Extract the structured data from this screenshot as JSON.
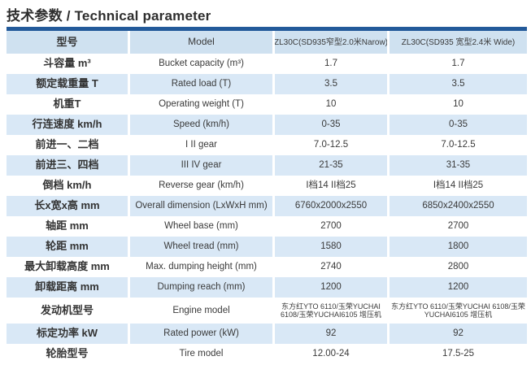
{
  "title": {
    "text": "技术参数 / Technical parameter"
  },
  "colors": {
    "navy": "#235a9a",
    "headerBg": "#cfe1f0",
    "stripeBg": "#d9e8f6",
    "title": "#2e2e2e",
    "text": "#3a3a3a"
  },
  "table": {
    "header": {
      "zh": "型号",
      "en": "Model",
      "narrow": "ZL30C(SD935窄型2.0米Narow)",
      "wide": "ZL30C(SD935 宽型2.4米 Wide)"
    },
    "rows": [
      {
        "zh": "斗容量 m³",
        "en": "Bucket capacity (m³)",
        "v1": "1.7",
        "v2": "1.7"
      },
      {
        "zh": "额定载重量 T",
        "en": "Rated load (T)",
        "v1": "3.5",
        "v2": "3.5"
      },
      {
        "zh": "机重T",
        "en": "Operating weight (T)",
        "v1": "10",
        "v2": "10"
      },
      {
        "zh": "行连速度 km/h",
        "en": "Speed (km/h)",
        "v1": "0-35",
        "v2": "0-35"
      },
      {
        "zh": "前进一、二档",
        "en": "I  II gear",
        "v1": "7.0-12.5",
        "v2": "7.0-12.5"
      },
      {
        "zh": "前进三、四档",
        "en": "III IV gear",
        "v1": "21-35",
        "v2": "31-35"
      },
      {
        "zh": "倒档 km/h",
        "en": "Reverse gear (km/h)",
        "v1": "I档14 II档25",
        "v2": "I档14 II档25"
      },
      {
        "zh": "长x宽x高 mm",
        "en": "Overall dimension (LxWxH mm)",
        "v1": "6760x2000x2550",
        "v2": "6850x2400x2550"
      },
      {
        "zh": "轴距 mm",
        "en": "Wheel base (mm)",
        "v1": "2700",
        "v2": "2700"
      },
      {
        "zh": "轮距 mm",
        "en": "Wheel tread (mm)",
        "v1": "1580",
        "v2": "1800"
      },
      {
        "zh": "最大卸载高度 mm",
        "en": "Max. dumping height (mm)",
        "v1": "2740",
        "v2": "2800"
      },
      {
        "zh": "卸载距离 mm",
        "en": "Dumping reach (mm)",
        "v1": "1200",
        "v2": "1200"
      },
      {
        "zh": "发动机型号",
        "en": "Engine model",
        "v1": "东方红YTO 6110/玉荣YUCHAI 6108/玉荣YUCHAI6105 增压机",
        "v2": "东方红YTO 6110/玉荣YUCHAI 6108/玉荣YUCHAI6105 增压机"
      },
      {
        "zh": "标定功率 kW",
        "en": "Rated power (kW)",
        "v1": "92",
        "v2": "92"
      },
      {
        "zh": "轮胎型号",
        "en": "Tire model",
        "v1": "12.00-24",
        "v2": "17.5-25"
      }
    ]
  }
}
